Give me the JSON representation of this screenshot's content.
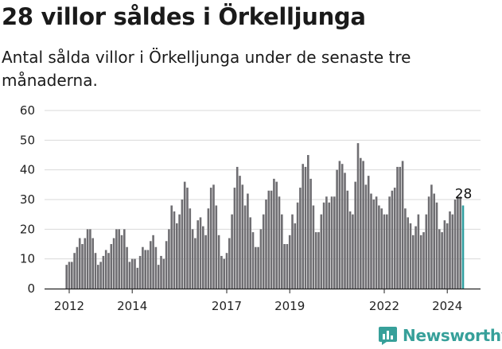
{
  "colors": {
    "bar": "#6f6e72",
    "highlight": "#2f9d9f",
    "axis": "#222222",
    "grid": "#d9d9d9",
    "brand": "#37a09a"
  },
  "brand": {
    "name": "Newsworthy",
    "icon": "newsworthy-logo-icon"
  },
  "chart_data": {
    "type": "bar",
    "title": "28 villor såldes i Örkelljunga",
    "subtitle": "Antal sålda villor i Örkelljunga under de senaste tre månaderna.",
    "ylim": [
      0,
      60
    ],
    "yticks": [
      0,
      10,
      20,
      30,
      40,
      50,
      60
    ],
    "grid": true,
    "xtick_labels": [
      {
        "label": "2012",
        "index": 1
      },
      {
        "label": "2014",
        "index": 25
      },
      {
        "label": "2017",
        "index": 61
      },
      {
        "label": "2019",
        "index": 85
      },
      {
        "label": "2022",
        "index": 121
      },
      {
        "label": "2024",
        "index": 145
      }
    ],
    "highlight_label": "28",
    "values": [
      8,
      9,
      9,
      12,
      14,
      17,
      15,
      17,
      20,
      20,
      17,
      12,
      8,
      9,
      11,
      13,
      12,
      15,
      17,
      20,
      20,
      18,
      20,
      14,
      9,
      10,
      10,
      7,
      11,
      14,
      13,
      13,
      16,
      18,
      14,
      8,
      11,
      10,
      16,
      20,
      28,
      26,
      22,
      25,
      30,
      36,
      34,
      27,
      20,
      17,
      23,
      24,
      21,
      18,
      27,
      34,
      35,
      28,
      18,
      11,
      10,
      12,
      17,
      25,
      34,
      41,
      38,
      35,
      28,
      32,
      24,
      19,
      14,
      14,
      20,
      25,
      30,
      33,
      33,
      37,
      36,
      31,
      25,
      15,
      15,
      18,
      25,
      22,
      29,
      34,
      42,
      41,
      45,
      37,
      28,
      19,
      19,
      25,
      29,
      31,
      29,
      31,
      31,
      40,
      43,
      42,
      39,
      33,
      26,
      25,
      36,
      49,
      44,
      43,
      35,
      38,
      32,
      30,
      31,
      28,
      27,
      25,
      25,
      31,
      33,
      34,
      41,
      41,
      43,
      27,
      24,
      22,
      18,
      21,
      25,
      18,
      19,
      25,
      31,
      35,
      32,
      29,
      20,
      19,
      23,
      22,
      26,
      25,
      30,
      31,
      31,
      28
    ]
  }
}
